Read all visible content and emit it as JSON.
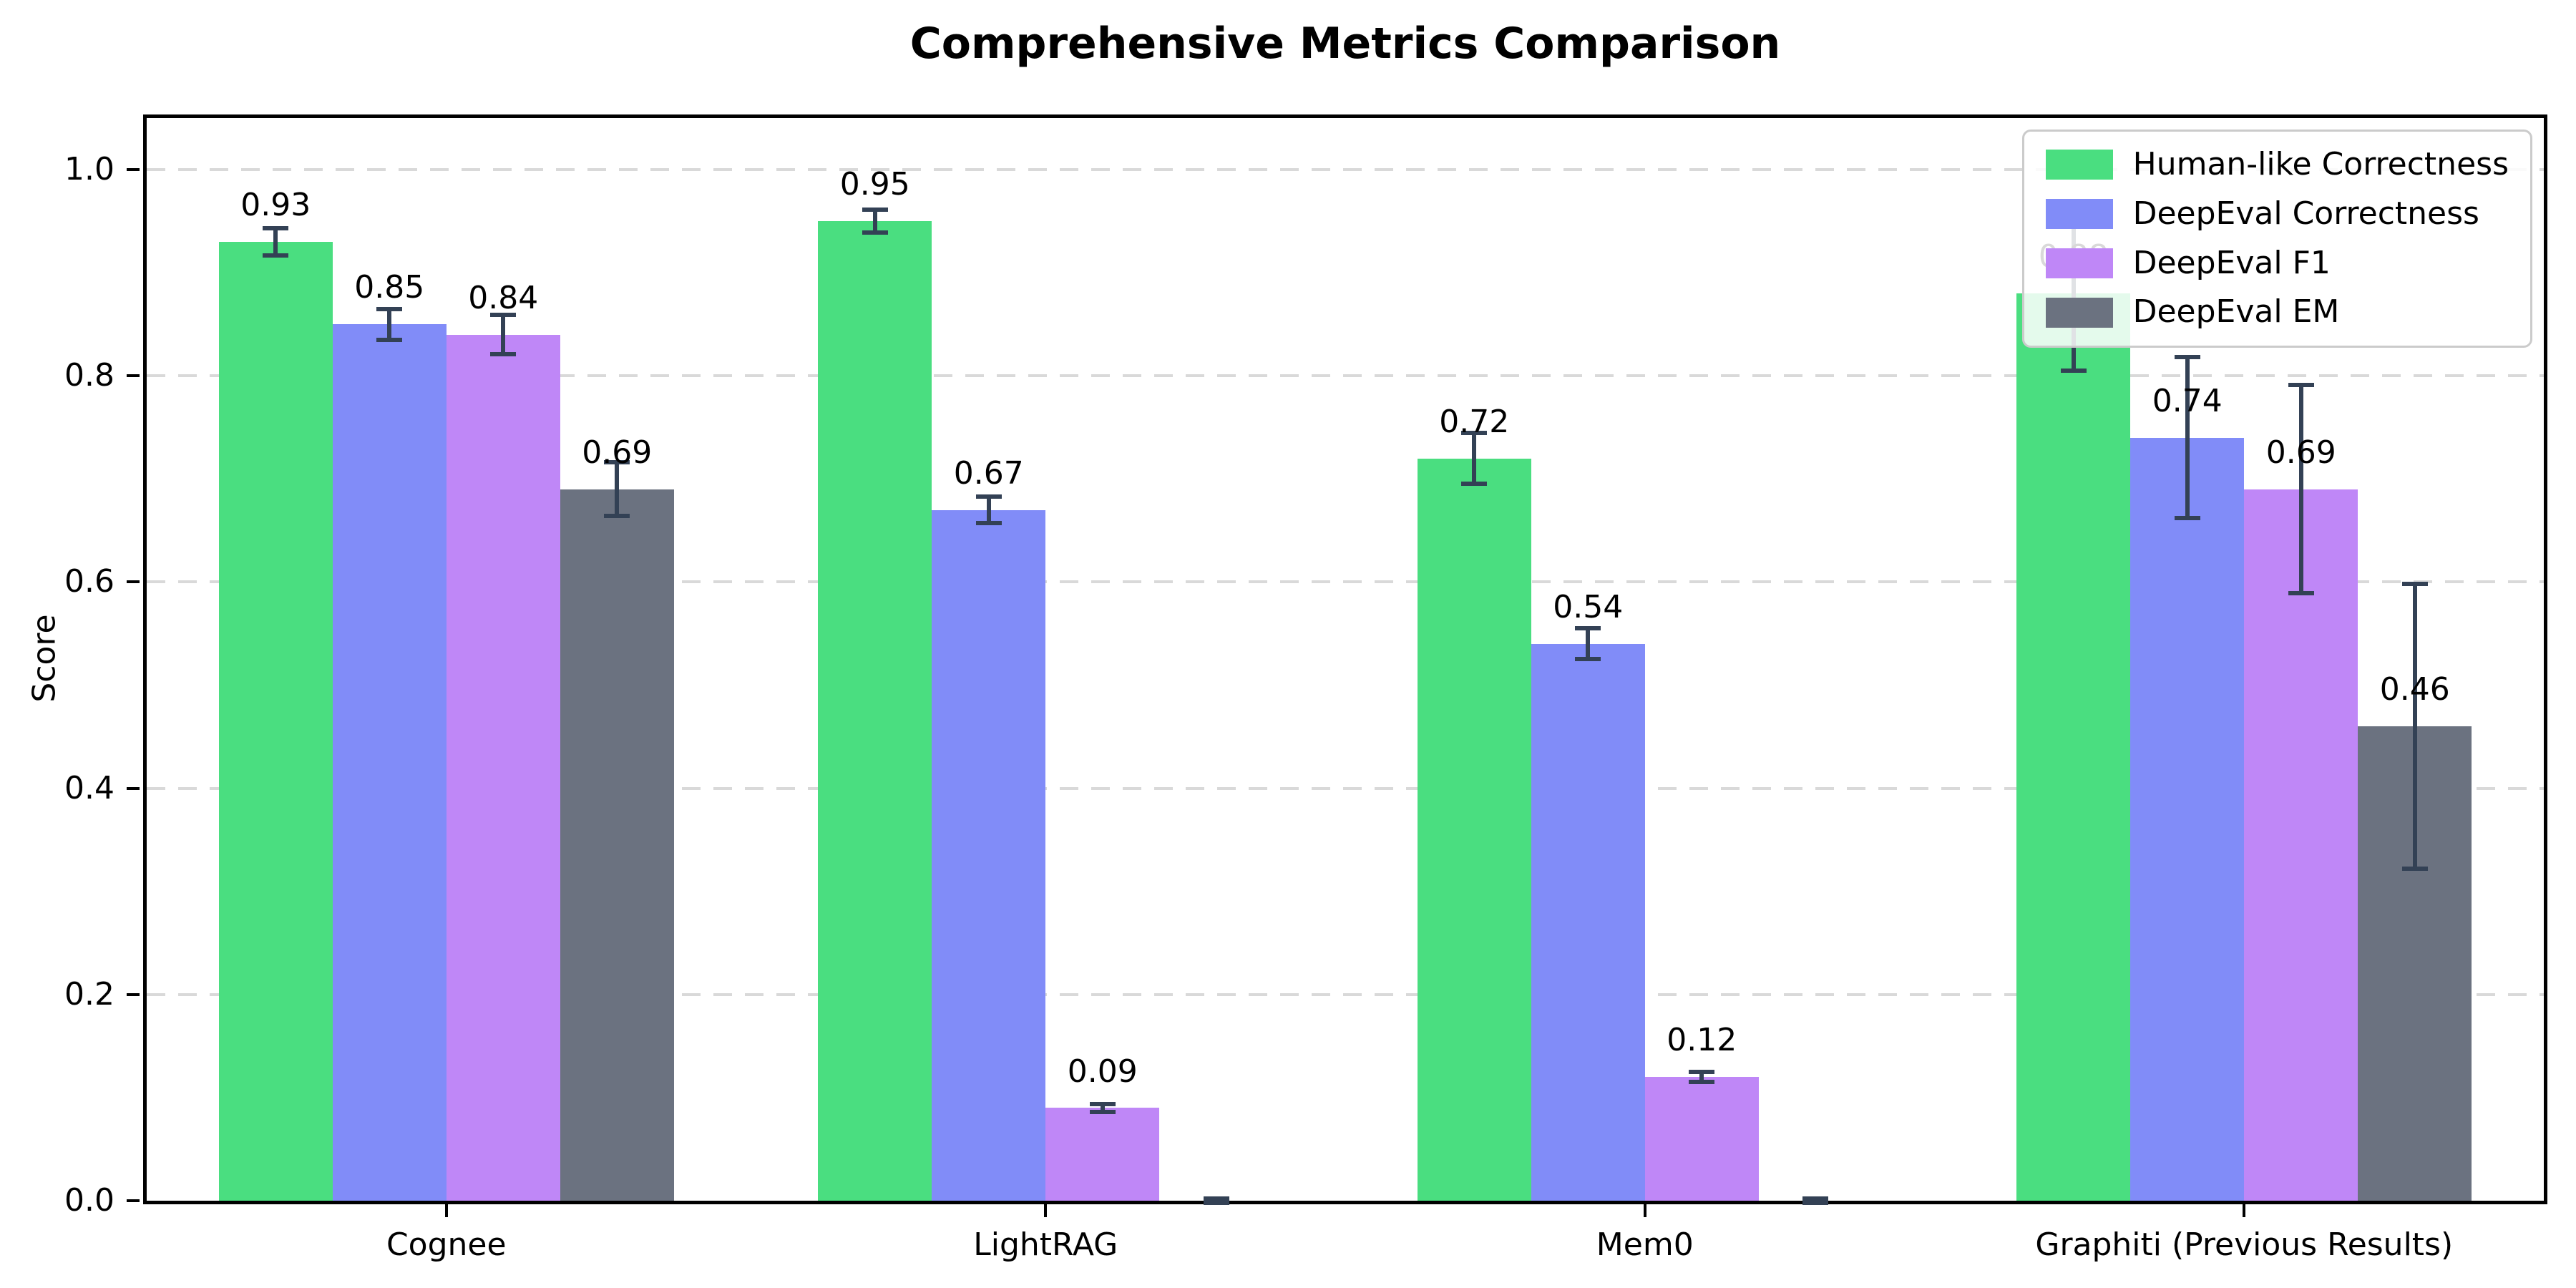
{
  "title": "Comprehensive Metrics Comparison",
  "colors": {
    "error_bar": "#334155",
    "axis": "#000000",
    "grid": "#d9d9d9",
    "text": "#000000",
    "legend_border": "#cbcbcb"
  },
  "chart_data": {
    "type": "bar",
    "title": "Comprehensive Metrics Comparison",
    "xlabel": "",
    "ylabel": "Score",
    "ylim": [
      0,
      1.05
    ],
    "grid": {
      "axis": "y",
      "style": "dashed",
      "color": "#d9d9d9"
    },
    "legend_position": "upper right",
    "categories": [
      "Cognee",
      "LightRAG",
      "Mem0",
      "Graphiti (Previous Results)"
    ],
    "yticks": [
      {
        "value": 0.0,
        "label": "0.0"
      },
      {
        "value": 0.2,
        "label": "0.2"
      },
      {
        "value": 0.4,
        "label": "0.4"
      },
      {
        "value": 0.6,
        "label": "0.6"
      },
      {
        "value": 0.8,
        "label": "0.8"
      },
      {
        "value": 1.0,
        "label": "1.0"
      }
    ],
    "series": [
      {
        "name": "Human-like Correctness",
        "color": "#4ade80",
        "values": [
          0.93,
          0.95,
          0.72,
          0.88
        ],
        "errors": [
          0.015,
          0.013,
          0.027,
          0.077
        ],
        "labels": [
          "0.93",
          "0.95",
          "0.72",
          "0.88"
        ]
      },
      {
        "name": "DeepEval Correctness",
        "color": "#818cf8",
        "values": [
          0.85,
          0.67,
          0.54,
          0.74
        ],
        "errors": [
          0.017,
          0.015,
          0.017,
          0.08
        ],
        "labels": [
          "0.85",
          "0.67",
          "0.54",
          "0.74"
        ]
      },
      {
        "name": "DeepEval F1",
        "color": "#bf87f7",
        "values": [
          0.84,
          0.09,
          0.12,
          0.69
        ],
        "errors": [
          0.021,
          0.006,
          0.007,
          0.103
        ],
        "labels": [
          "0.84",
          "0.09",
          "0.12",
          "0.69"
        ]
      },
      {
        "name": "DeepEval EM",
        "color": "#6b7280",
        "values": [
          0.69,
          0.0,
          0.0,
          0.46
        ],
        "errors": [
          0.028,
          0.004,
          0.004,
          0.14
        ],
        "labels": [
          "0.69",
          null,
          null,
          "0.46"
        ]
      }
    ]
  }
}
